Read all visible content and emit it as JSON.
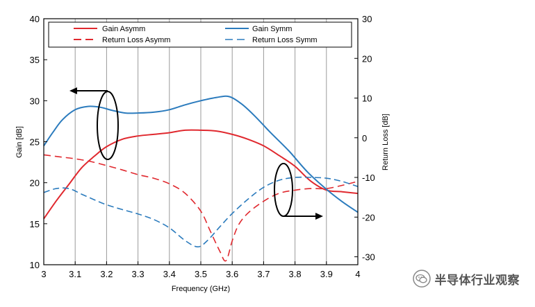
{
  "chart_data": {
    "type": "line",
    "xlabel": "Frequency (GHz)",
    "ylabel_left": "Gain [dB]",
    "ylabel_right": "Return Loss [dB]",
    "xlim": [
      3,
      4
    ],
    "ylim_left": [
      10,
      40
    ],
    "ylim_right": [
      -32,
      30
    ],
    "x_ticks": [
      "3",
      "3.1",
      "3.2",
      "3.3",
      "3.4",
      "3.5",
      "3.6",
      "3.7",
      "3.8",
      "3.9",
      "4"
    ],
    "y_ticks_left": [
      "10",
      "15",
      "20",
      "25",
      "30",
      "35",
      "40"
    ],
    "y_ticks_right": [
      "-30",
      "-20",
      "-10",
      "0",
      "10",
      "20",
      "30"
    ],
    "grid": "vertical",
    "legend_position": "top",
    "colors": {
      "asymm": "#e0282e",
      "symm": "#2b7bbd"
    },
    "series": [
      {
        "name": "Gain Asymm",
        "axis": "left",
        "color": "#e0282e",
        "dash": "solid",
        "x": [
          3.0,
          3.04,
          3.08,
          3.12,
          3.16,
          3.2,
          3.25,
          3.3,
          3.35,
          3.4,
          3.45,
          3.5,
          3.55,
          3.6,
          3.65,
          3.7,
          3.75,
          3.8,
          3.85,
          3.9,
          3.95,
          4.0
        ],
        "y": [
          15.6,
          17.8,
          19.8,
          21.8,
          23.2,
          24.4,
          25.3,
          25.7,
          25.9,
          26.1,
          26.4,
          26.4,
          26.3,
          25.9,
          25.3,
          24.5,
          23.3,
          22.0,
          20.2,
          19.1,
          18.9,
          18.7
        ]
      },
      {
        "name": "Gain Symm",
        "axis": "left",
        "color": "#2b7bbd",
        "dash": "solid",
        "x": [
          3.0,
          3.03,
          3.06,
          3.1,
          3.14,
          3.18,
          3.22,
          3.26,
          3.3,
          3.35,
          3.4,
          3.45,
          3.5,
          3.55,
          3.59,
          3.63,
          3.67,
          3.72,
          3.78,
          3.84,
          3.9,
          3.95,
          4.0
        ],
        "y": [
          24.5,
          26.2,
          27.7,
          28.9,
          29.3,
          29.2,
          28.8,
          28.5,
          28.5,
          28.6,
          28.9,
          29.5,
          30.0,
          30.4,
          30.5,
          29.6,
          28.2,
          26.2,
          23.9,
          21.3,
          19.2,
          17.7,
          16.4
        ]
      },
      {
        "name": "Return Loss Asymm",
        "axis": "right",
        "color": "#e0282e",
        "dash": "dashed",
        "x": [
          3.0,
          3.05,
          3.1,
          3.15,
          3.2,
          3.25,
          3.3,
          3.35,
          3.4,
          3.45,
          3.5,
          3.53,
          3.56,
          3.58,
          3.6,
          3.62,
          3.65,
          3.7,
          3.75,
          3.8,
          3.85,
          3.9,
          3.95,
          4.0
        ],
        "y": [
          -4.3,
          -4.8,
          -5.3,
          -6.0,
          -7.0,
          -8.1,
          -9.3,
          -10.2,
          -11.6,
          -14.0,
          -18.5,
          -23.5,
          -28.5,
          -31.0,
          -26.0,
          -22.0,
          -19.0,
          -16.0,
          -14.0,
          -13.2,
          -12.8,
          -12.8,
          -12.0,
          -11.0
        ]
      },
      {
        "name": "Return Loss Symm",
        "axis": "right",
        "color": "#2b7bbd",
        "dash": "dashed",
        "x": [
          3.0,
          3.04,
          3.08,
          3.12,
          3.16,
          3.2,
          3.25,
          3.3,
          3.35,
          3.4,
          3.45,
          3.49,
          3.52,
          3.56,
          3.6,
          3.65,
          3.7,
          3.75,
          3.8,
          3.85,
          3.9,
          3.95,
          4.0
        ],
        "y": [
          -13.8,
          -12.8,
          -12.8,
          -14.2,
          -15.6,
          -16.9,
          -18.1,
          -19.2,
          -20.6,
          -22.7,
          -25.9,
          -27.5,
          -26.0,
          -22.5,
          -19.1,
          -15.5,
          -12.5,
          -10.7,
          -10.0,
          -10.0,
          -10.2,
          -11.0,
          -12.3
        ]
      }
    ]
  },
  "legend": {
    "gain_asymm": "Gain Asymm",
    "return_loss_asymm": "Return Loss Asymm",
    "gain_symm": "Gain Symm",
    "return_loss_symm": "Return Loss Symm"
  },
  "watermark": {
    "text": "半导体行业观察",
    "icon": "wechat-icon"
  }
}
